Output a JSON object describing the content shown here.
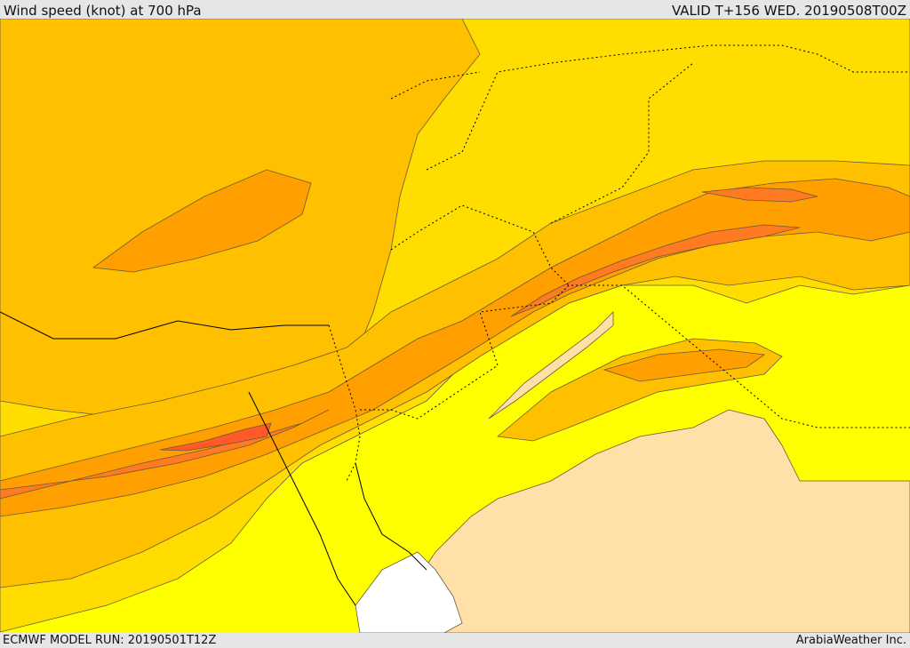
{
  "header": {
    "title": "Wind speed (knot) at 700 hPa",
    "valid": "VALID T+156 WED. 20190508T00Z"
  },
  "footer": {
    "model_run": "ECMWF MODEL RUN: 20190501T12Z",
    "brand": "ArabiaWeather Inc."
  },
  "palette": {
    "calm": "#ffffff",
    "very_light": "#ffe0a8",
    "light": "#ffff00",
    "moderate": "#ffdd00",
    "fresh": "#ffc000",
    "strong": "#ffa000",
    "jet": "#ff7a20",
    "core": "#ff5a28",
    "contour": "#6a5a3a",
    "border": "#000000"
  }
}
